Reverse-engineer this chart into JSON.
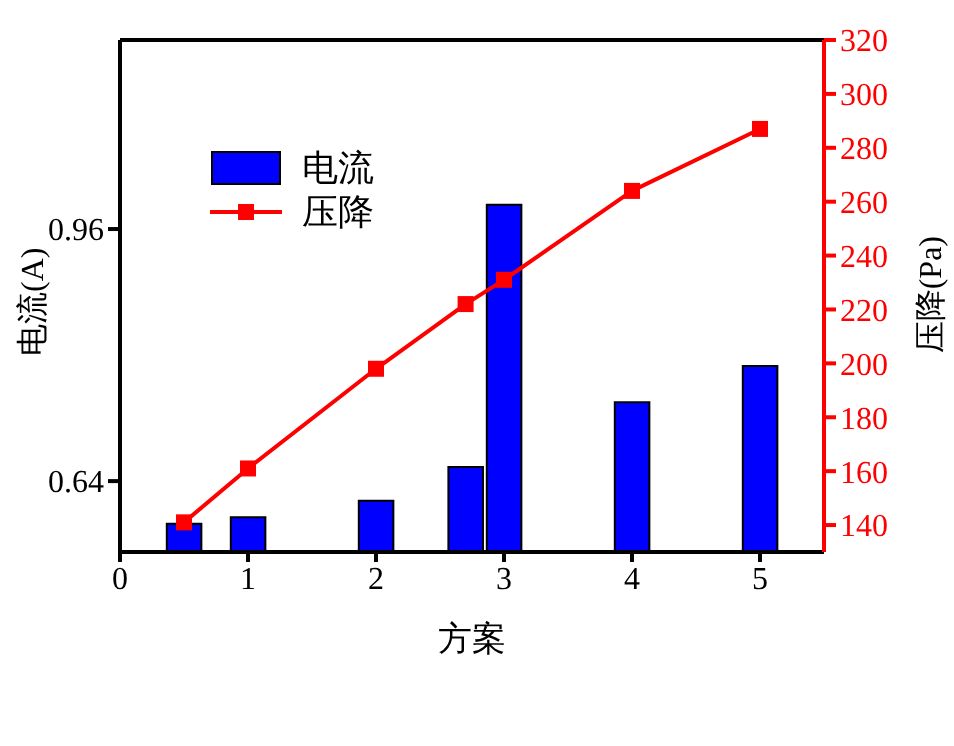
{
  "chart_data": {
    "type": "bar",
    "xlabel": "方案",
    "ylabel": "电流(A)",
    "y2label": "压降(Pa)",
    "x": [
      0.5,
      1,
      2,
      2.7,
      3,
      4,
      5
    ],
    "xlim": [
      0,
      5.5
    ],
    "xticks": [
      0,
      1,
      2,
      3,
      4,
      5
    ],
    "ylim": [
      0.55,
      1.2
    ],
    "yticks": [
      0.64,
      0.96
    ],
    "y2lim": [
      130,
      320
    ],
    "y2ticks": [
      140,
      160,
      180,
      200,
      220,
      240,
      260,
      280,
      300,
      320
    ],
    "series": [
      {
        "name": "电流",
        "color": "#0000ff",
        "values": [
          0.586,
          0.594,
          0.615,
          0.658,
          0.991,
          0.74,
          0.786
        ]
      },
      {
        "name": "压降",
        "type": "line",
        "axis": "y2",
        "color": "#ff0000",
        "marker": "square",
        "values": [
          141,
          161,
          198,
          222,
          231,
          264,
          287
        ]
      }
    ],
    "legend": "top left",
    "grid": false
  }
}
